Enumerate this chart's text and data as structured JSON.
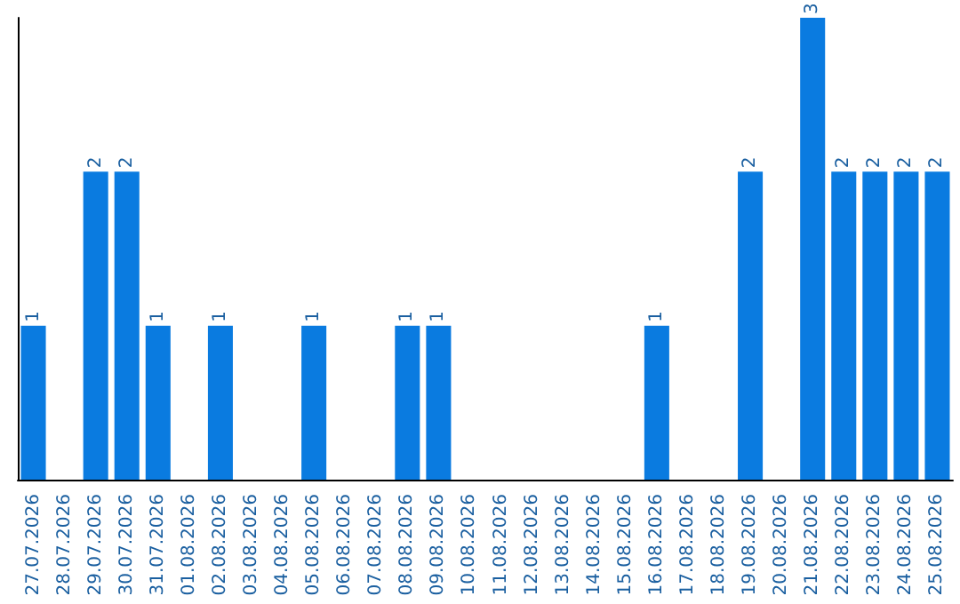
{
  "chart_data": {
    "type": "bar",
    "categories": [
      "27.07.2026",
      "28.07.2026",
      "29.07.2026",
      "30.07.2026",
      "31.07.2026",
      "01.08.2026",
      "02.08.2026",
      "03.08.2026",
      "04.08.2026",
      "05.08.2026",
      "06.08.2026",
      "07.08.2026",
      "08.08.2026",
      "09.08.2026",
      "10.08.2026",
      "11.08.2026",
      "12.08.2026",
      "13.08.2026",
      "14.08.2026",
      "15.08.2026",
      "16.08.2026",
      "17.08.2026",
      "18.08.2026",
      "19.08.2026",
      "20.08.2026",
      "21.08.2026",
      "22.08.2026",
      "23.08.2026",
      "24.08.2026",
      "25.08.2026"
    ],
    "values": [
      1,
      0,
      2,
      2,
      1,
      0,
      1,
      0,
      0,
      1,
      0,
      0,
      1,
      1,
      0,
      0,
      0,
      0,
      0,
      0,
      1,
      0,
      0,
      2,
      0,
      3,
      2,
      2,
      2,
      2
    ],
    "value_labels": [
      "1",
      null,
      "2",
      "2",
      "1",
      null,
      "1",
      null,
      null,
      "1",
      null,
      null,
      "1",
      "1",
      null,
      null,
      null,
      null,
      null,
      null,
      "1",
      null,
      null,
      "2",
      null,
      "3",
      "2",
      "2",
      "2",
      "2"
    ],
    "color": "#0a7be0",
    "tick_labels": "x",
    "grid": false
  }
}
